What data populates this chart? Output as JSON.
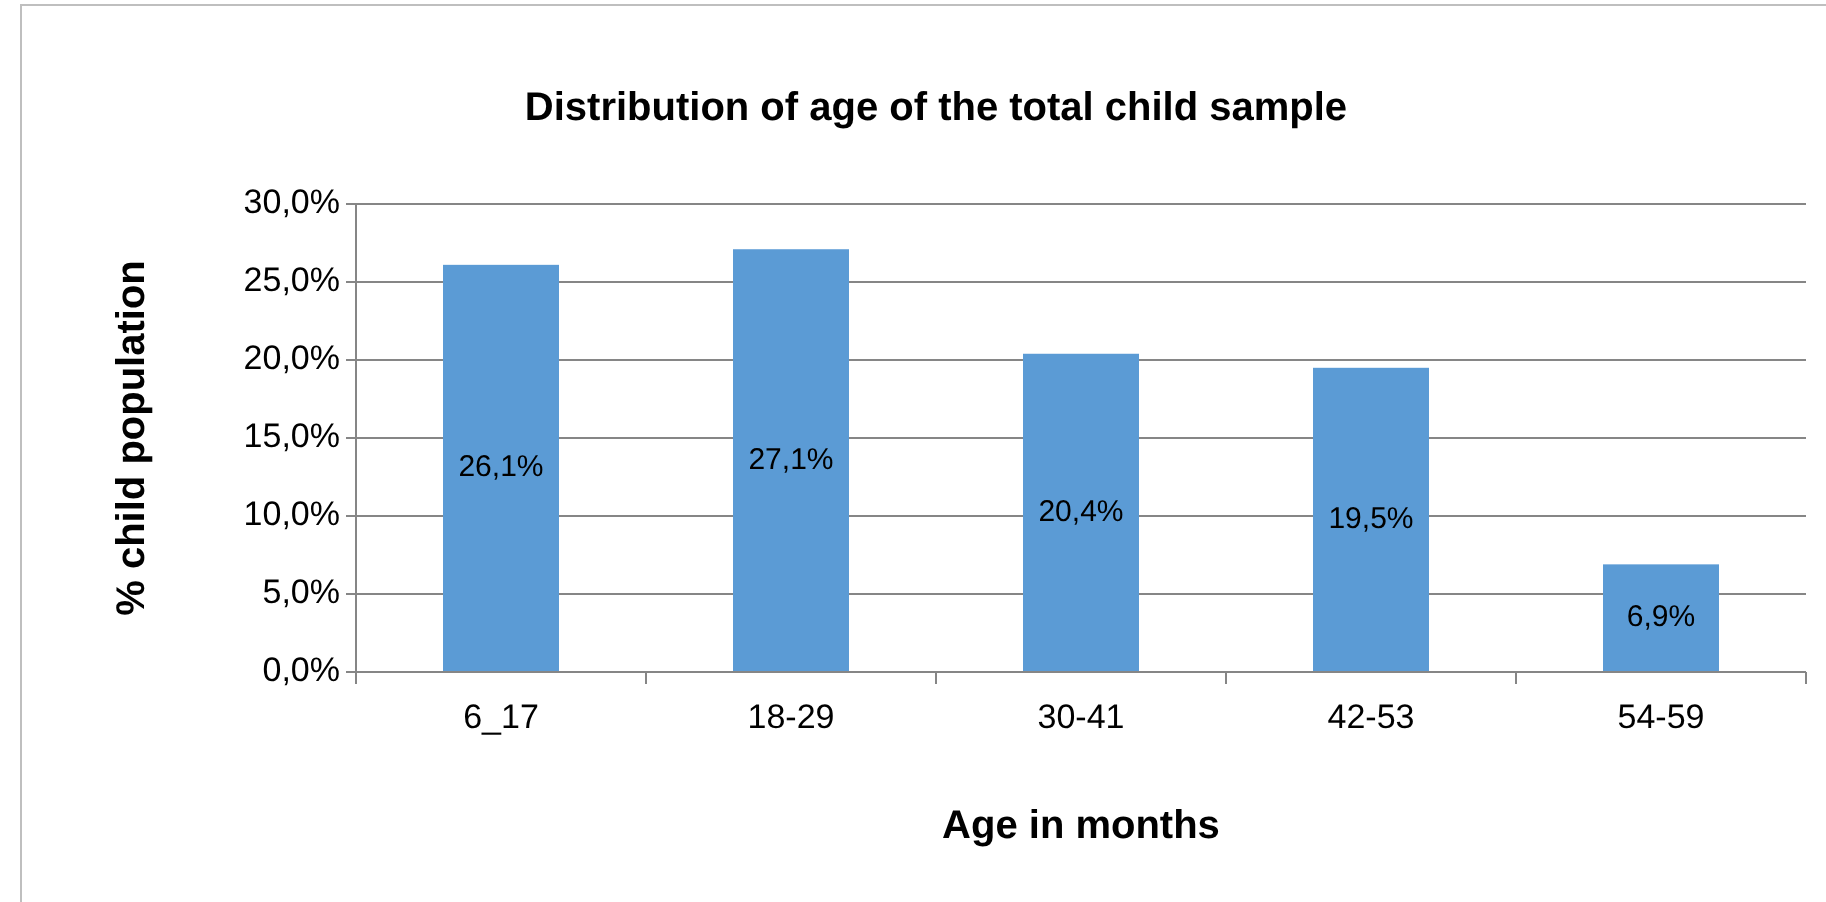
{
  "chart_data": {
    "type": "bar",
    "title": "Distribution of age of the total child sample",
    "xlabel": "Age in months",
    "ylabel": "% child population",
    "categories": [
      "6_17",
      "18-29",
      "30-41",
      "42-53",
      "54-59"
    ],
    "values": [
      26.1,
      27.1,
      20.4,
      19.5,
      6.9
    ],
    "value_labels": [
      "26,1%",
      "27,1%",
      "20,4%",
      "19,5%",
      "6,9%"
    ],
    "color": "#5b9bd5",
    "ylim": [
      0,
      30
    ],
    "yticks": [
      {
        "value": 0,
        "label": "0,0%"
      },
      {
        "value": 5,
        "label": "5,0%"
      },
      {
        "value": 10,
        "label": "10,0%"
      },
      {
        "value": 15,
        "label": "15,0%"
      },
      {
        "value": 20,
        "label": "20,0%"
      },
      {
        "value": 25,
        "label": "25,0%"
      },
      {
        "value": 30,
        "label": "30,0%"
      }
    ],
    "grid": "y"
  }
}
